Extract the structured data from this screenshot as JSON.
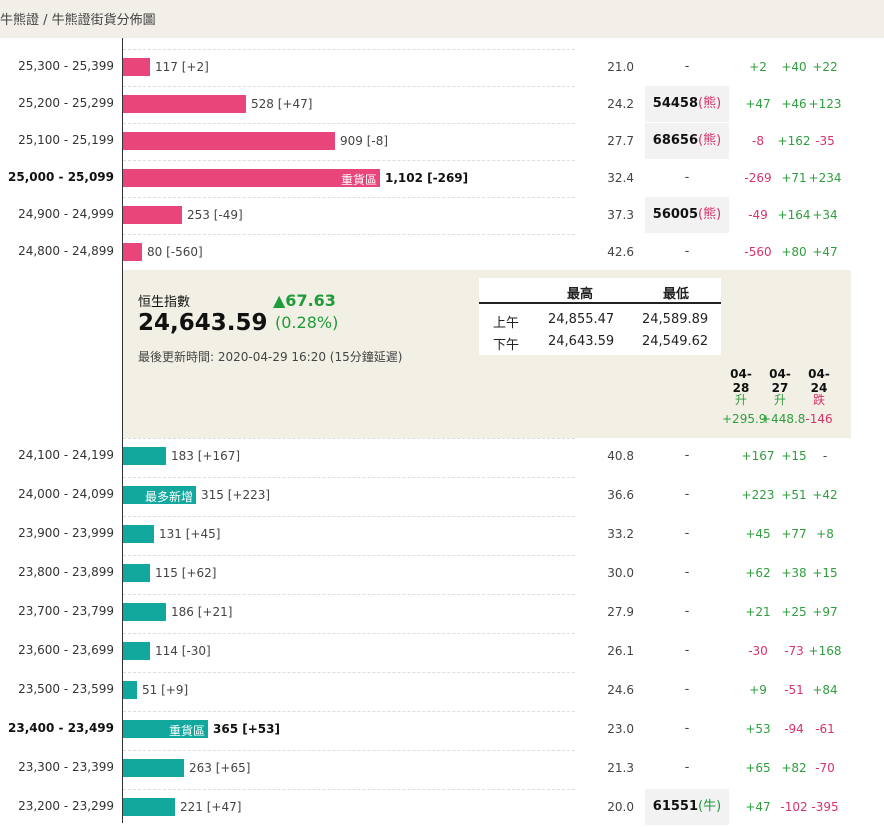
{
  "breadcrumb": "牛熊證 / 牛熊證街貨分佈圖",
  "bull_rows": [
    {
      "range": "25,300 - 25,399",
      "quantity_text": "117 [+2]",
      "value": 21.0,
      "ticker": "",
      "ticker_type": "",
      "d1": "+2",
      "d2": "+40",
      "d3": "+22"
    },
    {
      "range": "25,200 - 25,299",
      "quantity_text": "528 [+47]",
      "value": 24.2,
      "ticker": "54458",
      "ticker_type": "(熊)",
      "d1": "+47",
      "d2": "+46",
      "d3": "+123"
    },
    {
      "range": "25,100 - 25,199",
      "quantity_text": "909 [-8]",
      "value": 27.7,
      "ticker": "68656",
      "ticker_type": "(熊)",
      "d1": "-8",
      "d2": "+162",
      "d3": "-35"
    },
    {
      "range": "25,000 - 25,099",
      "quantity_text": "1,102 [-269]",
      "value": 32.4,
      "ticker": "",
      "ticker_type": "",
      "d1": "-269",
      "d2": "+71",
      "d3": "+234",
      "tag": "重貨區",
      "bold": true
    },
    {
      "range": "24,900 - 24,999",
      "quantity_text": "253 [-49]",
      "value": 37.3,
      "ticker": "56005",
      "ticker_type": "(熊)",
      "d1": "-49",
      "d2": "+164",
      "d3": "+34"
    },
    {
      "range": "24,800 - 24,899",
      "quantity_text": "80 [-560]",
      "value": 42.6,
      "ticker": "",
      "ticker_type": "",
      "d1": "-560",
      "d2": "+80",
      "d3": "+47"
    }
  ],
  "bull_quantities": [
    117,
    528,
    909,
    1102,
    253,
    80
  ],
  "index_panel": {
    "name": "恒生指數",
    "value": "24,643.59",
    "change": "▲67.63",
    "change_pct": "(0.28%)",
    "updated": "最後更新時間: 2020-04-29 16:20 (15分鐘延遲)",
    "hl_headers": [
      "最高",
      "最低"
    ],
    "hl_rows": [
      {
        "label": "上午",
        "high": "24,855.47",
        "low": "24,589.89"
      },
      {
        "label": "下午",
        "high": "24,643.59",
        "low": "24,549.62"
      }
    ],
    "dates": [
      "04-28",
      "04-27",
      "04-24"
    ],
    "directions": [
      "升",
      "升",
      "跌"
    ],
    "date_changes": [
      "+295.9",
      "+448.8",
      "-146"
    ]
  },
  "bear_rows": [
    {
      "range": "24,100 - 24,199",
      "quantity_text": "183 [+167]",
      "value": 40.8,
      "ticker": "",
      "ticker_type": "",
      "d1": "+167",
      "d2": "+15",
      "d3": "-"
    },
    {
      "range": "24,000 - 24,099",
      "quantity_text": "315 [+223]",
      "value": 36.6,
      "ticker": "",
      "ticker_type": "",
      "d1": "+223",
      "d2": "+51",
      "d3": "+42",
      "tag": "最多新增"
    },
    {
      "range": "23,900 - 23,999",
      "quantity_text": "131 [+45]",
      "value": 33.2,
      "ticker": "",
      "ticker_type": "",
      "d1": "+45",
      "d2": "+77",
      "d3": "+8"
    },
    {
      "range": "23,800 - 23,899",
      "quantity_text": "115 [+62]",
      "value": 30.0,
      "ticker": "",
      "ticker_type": "",
      "d1": "+62",
      "d2": "+38",
      "d3": "+15"
    },
    {
      "range": "23,700 - 23,799",
      "quantity_text": "186 [+21]",
      "value": 27.9,
      "ticker": "",
      "ticker_type": "",
      "d1": "+21",
      "d2": "+25",
      "d3": "+97"
    },
    {
      "range": "23,600 - 23,699",
      "quantity_text": "114 [-30]",
      "value": 26.1,
      "ticker": "",
      "ticker_type": "",
      "d1": "-30",
      "d2": "-73",
      "d3": "+168"
    },
    {
      "range": "23,500 - 23,599",
      "quantity_text": "51 [+9]",
      "value": 24.6,
      "ticker": "",
      "ticker_type": "",
      "d1": "+9",
      "d2": "-51",
      "d3": "+84"
    },
    {
      "range": "23,400 - 23,499",
      "quantity_text": "365 [+53]",
      "value": 23.0,
      "ticker": "",
      "ticker_type": "",
      "d1": "+53",
      "d2": "-94",
      "d3": "-61",
      "tag": "重貨區",
      "bold": true
    },
    {
      "range": "23,300 - 23,399",
      "quantity_text": "263 [+65]",
      "value": 21.3,
      "ticker": "",
      "ticker_type": "",
      "d1": "+65",
      "d2": "+82",
      "d3": "-70"
    },
    {
      "range": "23,200 - 23,299",
      "quantity_text": "221 [+47]",
      "value": 20.0,
      "ticker": "61551",
      "ticker_type": "(牛)",
      "d1": "+47",
      "d2": "-102",
      "d3": "-395"
    }
  ],
  "bear_quantities": [
    183,
    315,
    131,
    115,
    186,
    114,
    51,
    365,
    263,
    221
  ],
  "colors": {
    "bull": "#e8457b",
    "bear": "#13a89e",
    "up": "#2e9e3e",
    "down": "#d6336c",
    "panel": "#f2efe5"
  }
}
